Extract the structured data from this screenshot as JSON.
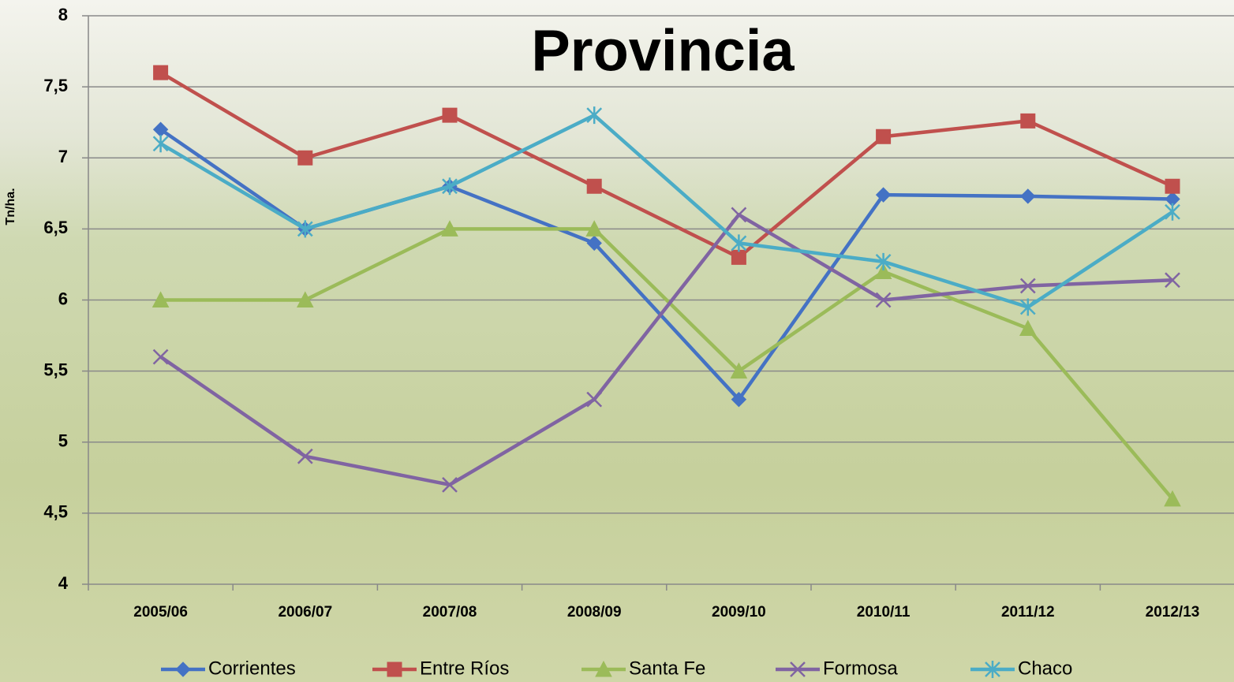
{
  "chart_data": {
    "type": "line",
    "title": "Provincia",
    "y_label": "Tn/ha.",
    "categories": [
      "2005/06",
      "2006/07",
      "2007/08",
      "2008/09",
      "2009/10",
      "2010/11",
      "2011/12",
      "2012/13"
    ],
    "series": [
      {
        "name": "Corrientes",
        "color": "#4472c4",
        "marker": "diamond",
        "values": [
          7.2,
          6.5,
          6.8,
          6.4,
          5.3,
          6.74,
          6.73,
          6.71
        ]
      },
      {
        "name": "Entre Ríos",
        "color": "#c0504d",
        "marker": "square",
        "values": [
          7.6,
          7.0,
          7.3,
          6.8,
          6.3,
          7.15,
          7.26,
          6.8
        ]
      },
      {
        "name": "Santa Fe",
        "color": "#9bbb59",
        "marker": "triangle",
        "values": [
          6.0,
          6.0,
          6.5,
          6.5,
          5.5,
          6.2,
          5.8,
          4.6
        ]
      },
      {
        "name": "Formosa",
        "color": "#8064a2",
        "marker": "x",
        "values": [
          5.6,
          4.9,
          4.7,
          5.3,
          6.6,
          6.0,
          6.1,
          6.14
        ]
      },
      {
        "name": "Chaco",
        "color": "#4bacc6",
        "marker": "star",
        "values": [
          7.1,
          6.5,
          6.8,
          7.3,
          6.4,
          6.27,
          5.95,
          6.62
        ]
      }
    ],
    "ylim": [
      4,
      8
    ],
    "yticks": [
      4,
      {
        "value": 4.5,
        "label": "4,5"
      },
      5,
      {
        "value": 5.5,
        "label": "5,5"
      },
      6,
      {
        "value": 6.5,
        "label": "6,5"
      },
      7,
      {
        "value": 7.5,
        "label": "7,5"
      },
      8
    ],
    "grid": true,
    "legend": "bottom"
  }
}
